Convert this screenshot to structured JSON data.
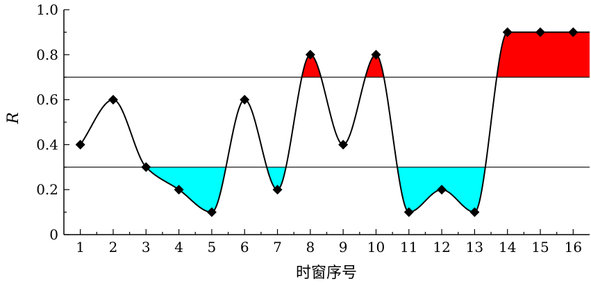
{
  "chart_data": {
    "type": "line",
    "title": "",
    "xlabel": "时窗序号",
    "ylabel": "R",
    "x": [
      1,
      2,
      3,
      4,
      5,
      6,
      7,
      8,
      9,
      10,
      11,
      12,
      13,
      14,
      15,
      16
    ],
    "y_ticks": [
      "0",
      "0.2",
      "0.4",
      "0.6",
      "0.8",
      "1.0"
    ],
    "series": [
      {
        "values": [
          0.4,
          0.6,
          0.3,
          0.2,
          0.1,
          0.6,
          0.2,
          0.8,
          0.4,
          0.8,
          0.1,
          0.2,
          0.1,
          0.9,
          0.9,
          0.9
        ]
      }
    ],
    "thresholds": {
      "upper": 0.7,
      "lower": 0.3
    },
    "xlim": [
      0.5,
      16.5
    ],
    "ylim": [
      0,
      1.0
    ],
    "grid": false,
    "legend": "none",
    "colors": {
      "line": "#000000",
      "marker": "#000000",
      "above_upper_fill": "#ff0000",
      "below_lower_fill": "#00ffff",
      "threshold_line": "#000000"
    }
  }
}
